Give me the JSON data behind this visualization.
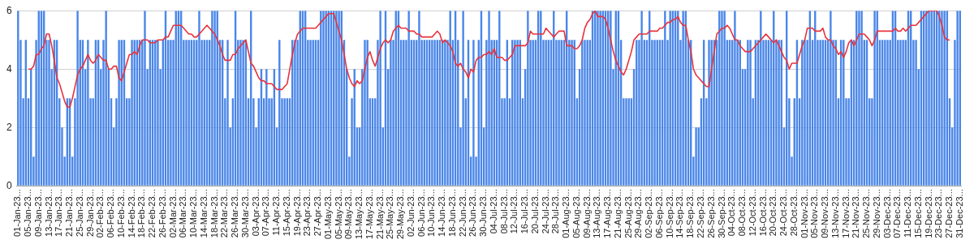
{
  "chart_data": {
    "type": "bar",
    "ylim": [
      0,
      6
    ],
    "yticks": [
      0,
      2,
      4,
      6
    ],
    "grid": "y",
    "legend": false,
    "marker": "none",
    "categories": [
      "01-Jan-23...",
      null,
      null,
      null,
      "05-Jan-23...",
      null,
      null,
      null,
      "09-Jan-23...",
      null,
      null,
      null,
      "13-Jan-23...",
      null,
      null,
      null,
      "17-Jan-23...",
      null,
      null,
      null,
      "21-Jan-23...",
      null,
      null,
      null,
      "25-Jan-23...",
      null,
      null,
      null,
      "29-Jan-23...",
      null,
      null,
      null,
      "02-Feb-23...",
      null,
      null,
      null,
      "06-Feb-23...",
      null,
      null,
      null,
      "10-Feb-23...",
      null,
      null,
      null,
      "14-Feb-23...",
      null,
      null,
      null,
      "18-Feb-23...",
      null,
      null,
      null,
      "22-Feb-23...",
      null,
      null,
      null,
      "26-Feb-23...",
      null,
      null,
      null,
      "02-Mar-23...",
      null,
      null,
      null,
      "06-Mar-23...",
      null,
      null,
      null,
      "10-Mar-23...",
      null,
      null,
      null,
      "14-Mar-23...",
      null,
      null,
      null,
      "18-Mar-23...",
      null,
      null,
      null,
      "22-Mar-23...",
      null,
      null,
      null,
      "26-Mar-23...",
      null,
      null,
      null,
      "30-Mar-23...",
      null,
      null,
      null,
      "03-Apr-23...",
      null,
      null,
      null,
      "07-Apr-23...",
      null,
      null,
      null,
      "11-Apr-23...",
      null,
      null,
      null,
      "15-Apr-23...",
      null,
      null,
      null,
      "19-Apr-23...",
      null,
      null,
      null,
      "23-Apr-23...",
      null,
      null,
      null,
      "27-Apr-23...",
      null,
      null,
      null,
      "01-May-23...",
      null,
      null,
      null,
      "05-May-23...",
      null,
      null,
      null,
      "09-May-23...",
      null,
      null,
      null,
      "13-May-23...",
      null,
      null,
      null,
      "17-May-23...",
      null,
      null,
      null,
      "21-May-23...",
      null,
      null,
      null,
      "25-May-23...",
      null,
      null,
      null,
      "29-May-23...",
      null,
      null,
      null,
      "02-Jun-23...",
      null,
      null,
      null,
      "06-Jun-23...",
      null,
      null,
      null,
      "10-Jun-23...",
      null,
      null,
      null,
      "14-Jun-23...",
      null,
      null,
      null,
      "18-Jun-23...",
      null,
      null,
      null,
      "22-Jun-23...",
      null,
      null,
      null,
      "26-Jun-23...",
      null,
      null,
      null,
      "30-Jun-23...",
      null,
      null,
      null,
      "04-Jul-23...",
      null,
      null,
      null,
      "08-Jul-23...",
      null,
      null,
      null,
      "12-Jul-23...",
      null,
      null,
      null,
      "16-Jul-23...",
      null,
      null,
      null,
      "20-Jul-23...",
      null,
      null,
      null,
      "24-Jul-23...",
      null,
      null,
      null,
      "28-Jul-23...",
      null,
      null,
      null,
      "01-Aug-23...",
      null,
      null,
      null,
      "05-Aug-23...",
      null,
      null,
      null,
      "09-Aug-23...",
      null,
      null,
      null,
      "13-Aug-23...",
      null,
      null,
      null,
      "17-Aug-23...",
      null,
      null,
      null,
      "21-Aug-23...",
      null,
      null,
      null,
      "25-Aug-23...",
      null,
      null,
      null,
      "29-Aug-23...",
      null,
      null,
      null,
      "02-Sep-23...",
      null,
      null,
      null,
      "06-Sep-23...",
      null,
      null,
      null,
      "10-Sep-23...",
      null,
      null,
      null,
      "14-Sep-23...",
      null,
      null,
      null,
      "18-Sep-23...",
      null,
      null,
      null,
      "22-Sep-23...",
      null,
      null,
      null,
      "26-Sep-23...",
      null,
      null,
      null,
      "30-Sep-23...",
      null,
      null,
      null,
      "04-Oct-23...",
      null,
      null,
      null,
      "08-Oct-23...",
      null,
      null,
      null,
      "12-Oct-23...",
      null,
      null,
      null,
      "16-Oct-23...",
      null,
      null,
      null,
      "20-Oct-23...",
      null,
      null,
      null,
      "24-Oct-23...",
      null,
      null,
      null,
      "28-Oct-23...",
      null,
      null,
      null,
      "01-Nov-23...",
      null,
      null,
      null,
      "05-Nov-23...",
      null,
      null,
      null,
      "09-Nov-23...",
      null,
      null,
      null,
      "13-Nov-23...",
      null,
      null,
      null,
      "17-Nov-23...",
      null,
      null,
      null,
      "21-Nov-23...",
      null,
      null,
      null,
      "25-Nov-23...",
      null,
      null,
      null,
      "29-Nov-23...",
      null,
      null,
      null,
      "03-Dec-23...",
      null,
      null,
      null,
      "07-Dec-23...",
      null,
      null,
      null,
      "11-Dec-23...",
      null,
      null,
      null,
      "15-Dec-23...",
      null,
      null,
      null,
      "19-Dec-23...",
      null,
      null,
      null,
      "23-Dec-23...",
      null,
      null,
      null,
      "27-Dec-23...",
      null,
      null,
      null,
      "31-Dec-23..."
    ],
    "series": [
      {
        "color": "#4a86e8",
        "values": [
          6,
          5,
          3,
          5,
          3,
          4,
          1,
          5,
          6,
          6,
          6,
          5,
          5,
          4,
          5,
          5,
          3,
          2,
          1,
          3,
          3,
          1,
          3,
          6,
          5,
          5,
          4,
          5,
          3,
          3,
          5,
          5,
          4,
          5,
          6,
          4,
          3,
          2,
          3,
          5,
          5,
          5,
          3,
          3,
          5,
          5,
          5,
          5,
          5,
          6,
          4,
          5,
          5,
          5,
          5,
          4,
          5,
          6,
          5,
          5,
          5,
          6,
          6,
          6,
          5,
          5,
          5,
          5,
          5,
          5,
          6,
          5,
          5,
          5,
          5,
          6,
          6,
          6,
          5,
          5,
          3,
          5,
          2,
          3,
          6,
          5,
          5,
          5,
          5,
          3,
          6,
          3,
          2,
          3,
          4,
          3,
          4,
          3,
          3,
          4,
          2,
          5,
          3,
          3,
          3,
          3,
          5,
          5,
          5,
          6,
          6,
          6,
          5,
          5,
          5,
          5,
          5,
          6,
          6,
          6,
          6,
          6,
          6,
          6,
          6,
          6,
          5,
          4,
          1,
          3,
          4,
          2,
          2,
          4,
          5,
          5,
          3,
          3,
          3,
          5,
          6,
          2,
          6,
          4,
          5,
          5,
          6,
          6,
          5,
          5,
          5,
          6,
          5,
          5,
          5,
          6,
          5,
          5,
          5,
          5,
          5,
          5,
          5,
          5,
          5,
          5,
          5,
          6,
          5,
          6,
          5,
          2,
          6,
          3,
          5,
          1,
          5,
          1,
          5,
          6,
          2,
          5,
          6,
          5,
          5,
          5,
          6,
          3,
          3,
          5,
          3,
          5,
          5,
          5,
          5,
          3,
          4,
          6,
          5,
          5,
          5,
          6,
          6,
          5,
          5,
          5,
          5,
          6,
          5,
          5,
          5,
          5,
          6,
          5,
          5,
          5,
          3,
          4,
          5,
          5,
          5,
          5,
          6,
          6,
          6,
          6,
          6,
          6,
          6,
          6,
          4,
          6,
          6,
          5,
          3,
          3,
          3,
          3,
          4,
          5,
          5,
          6,
          5,
          5,
          6,
          5,
          5,
          5,
          5,
          5,
          6,
          5,
          6,
          6,
          6,
          6,
          5,
          6,
          6,
          5,
          5,
          1,
          2,
          2,
          3,
          5,
          3,
          5,
          5,
          5,
          5,
          6,
          6,
          6,
          5,
          5,
          5,
          6,
          5,
          5,
          4,
          4,
          5,
          5,
          3,
          5,
          5,
          6,
          5,
          5,
          5,
          5,
          6,
          5,
          5,
          5,
          2,
          6,
          3,
          1,
          3,
          5,
          3,
          5,
          5,
          5,
          6,
          5,
          6,
          5,
          5,
          5,
          5,
          5,
          6,
          5,
          5,
          3,
          5,
          5,
          3,
          3,
          5,
          5,
          6,
          6,
          6,
          5,
          5,
          3,
          3,
          6,
          6,
          5,
          5,
          5,
          5,
          5,
          6,
          6,
          5,
          5,
          5,
          5,
          6,
          6,
          5,
          5,
          4,
          6,
          6,
          6,
          6,
          6,
          6,
          6,
          6,
          6,
          6,
          6,
          3,
          2,
          5,
          6,
          6
        ]
      },
      {
        "type": "line",
        "color": "#e8323c",
        "values": [
          null,
          null,
          null,
          null,
          4.0,
          4.0,
          4.1,
          4.5,
          4.5,
          4.7,
          4.8,
          5.2,
          5.2,
          4.8,
          4.3,
          3.7,
          3.5,
          3.2,
          2.9,
          2.7,
          2.7,
          3.0,
          3.4,
          3.8,
          4.0,
          4.1,
          4.3,
          4.5,
          4.3,
          4.2,
          4.3,
          4.5,
          4.4,
          4.3,
          4.3,
          4.0,
          4.0,
          4.1,
          4.1,
          3.7,
          3.6,
          3.9,
          4.2,
          4.5,
          4.5,
          4.6,
          4.5,
          4.8,
          5.0,
          5.0,
          5.0,
          4.9,
          4.9,
          4.9,
          5.0,
          5.0,
          5.0,
          5.1,
          5.1,
          5.3,
          5.5,
          5.5,
          5.5,
          5.5,
          5.4,
          5.3,
          5.2,
          5.2,
          5.1,
          5.1,
          5.2,
          5.3,
          5.4,
          5.5,
          5.4,
          5.3,
          5.2,
          5.0,
          4.8,
          4.5,
          4.3,
          4.3,
          4.3,
          4.5,
          4.5,
          4.7,
          4.8,
          4.9,
          5.0,
          4.6,
          4.2,
          4.1,
          3.9,
          3.7,
          3.6,
          3.6,
          3.5,
          3.5,
          3.5,
          3.4,
          3.3,
          3.3,
          3.3,
          3.4,
          3.5,
          4.0,
          4.5,
          4.9,
          5.2,
          5.3,
          5.4,
          5.4,
          5.4,
          5.4,
          5.4,
          5.4,
          5.5,
          5.6,
          5.7,
          5.8,
          5.9,
          5.9,
          5.9,
          5.6,
          5.3,
          5.0,
          4.5,
          4.0,
          3.7,
          3.5,
          3.4,
          3.6,
          3.5,
          3.6,
          4.0,
          4.4,
          4.6,
          4.3,
          4.1,
          4.4,
          4.7,
          4.9,
          5.0,
          4.9,
          5.0,
          5.3,
          5.4,
          5.5,
          5.4,
          5.4,
          5.4,
          5.3,
          5.3,
          5.3,
          5.2,
          5.2,
          5.1,
          5.1,
          5.1,
          5.1,
          5.1,
          5.2,
          5.3,
          5.2,
          4.9,
          5.0,
          4.9,
          4.8,
          4.6,
          4.2,
          4.1,
          4.2,
          4.0,
          3.9,
          3.7,
          4.0,
          3.9,
          4.3,
          4.4,
          4.4,
          4.5,
          4.5,
          4.6,
          4.5,
          4.7,
          4.4,
          4.4,
          4.4,
          4.3,
          4.3,
          4.4,
          4.5,
          4.8,
          4.8,
          4.8,
          4.8,
          4.8,
          4.9,
          5.3,
          5.2,
          5.2,
          5.2,
          5.2,
          5.2,
          5.4,
          5.3,
          5.2,
          5.1,
          5.2,
          5.3,
          5.3,
          5.3,
          4.8,
          4.8,
          4.8,
          4.7,
          4.7,
          4.8,
          5.0,
          5.4,
          5.6,
          5.7,
          5.9,
          6.0,
          5.8,
          5.8,
          5.8,
          5.7,
          5.4,
          5.0,
          4.6,
          4.3,
          4.1,
          3.9,
          3.8,
          4.0,
          4.3,
          4.6,
          5.0,
          5.1,
          5.2,
          5.2,
          5.2,
          5.2,
          5.3,
          5.3,
          5.3,
          5.3,
          5.4,
          5.4,
          5.5,
          5.6,
          5.6,
          5.7,
          5.7,
          5.8,
          5.6,
          5.5,
          5.5,
          5.0,
          4.6,
          4.0,
          3.8,
          3.7,
          3.6,
          3.5,
          3.4,
          3.4,
          4.0,
          4.6,
          5.2,
          5.3,
          5.4,
          5.4,
          5.5,
          5.4,
          5.2,
          5.0,
          5.0,
          4.8,
          4.7,
          4.6,
          4.6,
          4.6,
          4.7,
          4.8,
          4.9,
          5.0,
          5.1,
          5.2,
          5.1,
          5.0,
          4.9,
          5.0,
          4.8,
          4.6,
          4.4,
          4.3,
          4.0,
          4.2,
          4.2,
          4.2,
          4.5,
          4.8,
          5.0,
          5.4,
          5.4,
          5.4,
          5.3,
          5.3,
          5.3,
          5.4,
          5.1,
          5.0,
          5.0,
          4.8,
          4.7,
          4.5,
          4.6,
          4.4,
          4.6,
          4.9,
          5.0,
          4.8,
          5.0,
          5.2,
          5.2,
          5.2,
          5.1,
          5.0,
          4.8,
          5.0,
          5.3,
          5.3,
          5.3,
          5.3,
          5.3,
          5.3,
          5.3,
          5.4,
          5.3,
          5.3,
          5.4,
          5.3,
          5.4,
          5.5,
          5.5,
          5.5,
          5.6,
          5.7,
          5.8,
          5.9,
          6.0,
          6.0,
          6.0,
          6.0,
          5.8,
          5.5,
          5.1,
          5.0,
          5.0,
          null,
          null,
          null,
          null
        ]
      }
    ]
  }
}
